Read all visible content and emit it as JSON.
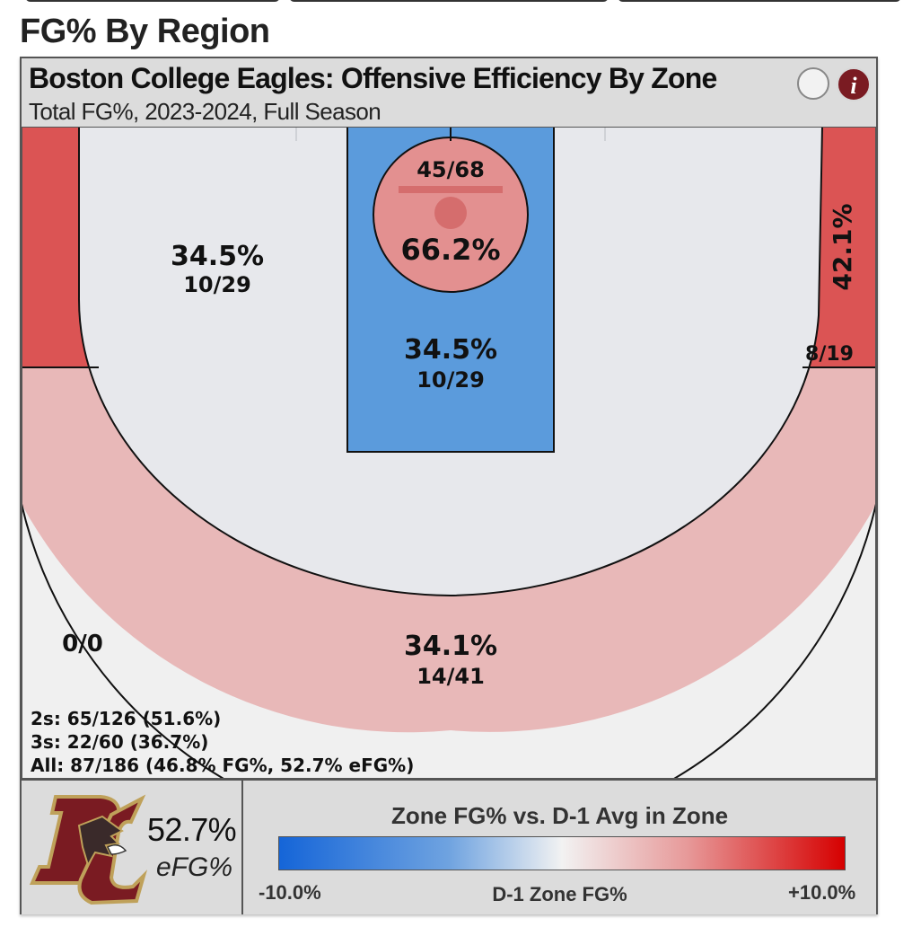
{
  "page": {
    "section_title": "FG% By Region"
  },
  "card": {
    "title": "Boston College Eagles: Offensive Efficiency By Zone",
    "subtitle": "Total FG%, 2023-2024, Full Season",
    "info_icon_glyph": "i"
  },
  "colors": {
    "paint_blue": "#5b9bdc",
    "rim_red": "#e39090",
    "corner_red": "#db5454",
    "arc_pink": "#e8b8b8",
    "midrange_gray": "#e7e8ec",
    "deep_gray": "#f0f0f0",
    "brand_maroon": "#7a1b22",
    "brand_gold": "#bfa15a"
  },
  "chart_data": {
    "type": "heatmap",
    "title": "Boston College Eagles: Offensive Efficiency By Zone",
    "subtitle": "Total FG%, 2023-2024, Full Season",
    "zones": [
      {
        "zone": "rim",
        "fg_pct": "66.2%",
        "makes_attempts": "45/68",
        "color": "#e39090"
      },
      {
        "zone": "paint",
        "fg_pct": "34.5%",
        "makes_attempts": "10/29",
        "color": "#5b9bdc"
      },
      {
        "zone": "midrange",
        "fg_pct": "34.5%",
        "makes_attempts": "10/29",
        "color": "#e7e8ec"
      },
      {
        "zone": "right-corner-three",
        "fg_pct": "42.1%",
        "makes_attempts": "8/19",
        "color": "#db5454"
      },
      {
        "zone": "left-corner-three",
        "fg_pct": "",
        "makes_attempts": "",
        "color": "#db5454"
      },
      {
        "zone": "above-break-three",
        "fg_pct": "34.1%",
        "makes_attempts": "14/41",
        "color": "#e8b8b8"
      },
      {
        "zone": "deep",
        "fg_pct": "",
        "makes_attempts": "0/0",
        "color": "#f0f0f0"
      }
    ],
    "summary": {
      "twos": "2s: 65/126 (51.6%)",
      "threes": "3s: 22/60 (36.7%)",
      "all": "All: 87/186 (46.8% FG%, 52.7% eFG%)"
    },
    "efg": {
      "value": "52.7%",
      "label": "eFG%"
    },
    "legend": {
      "title": "Zone FG% vs. D-1 Avg in Zone",
      "min_label": "-10.0%",
      "max_label": "+10.0%",
      "axis_label": "D-1 Zone FG%",
      "min": -10.0,
      "max": 10.0,
      "low_color": "#1565d8",
      "mid_color": "#f2f2f2",
      "high_color": "#d60000"
    }
  }
}
